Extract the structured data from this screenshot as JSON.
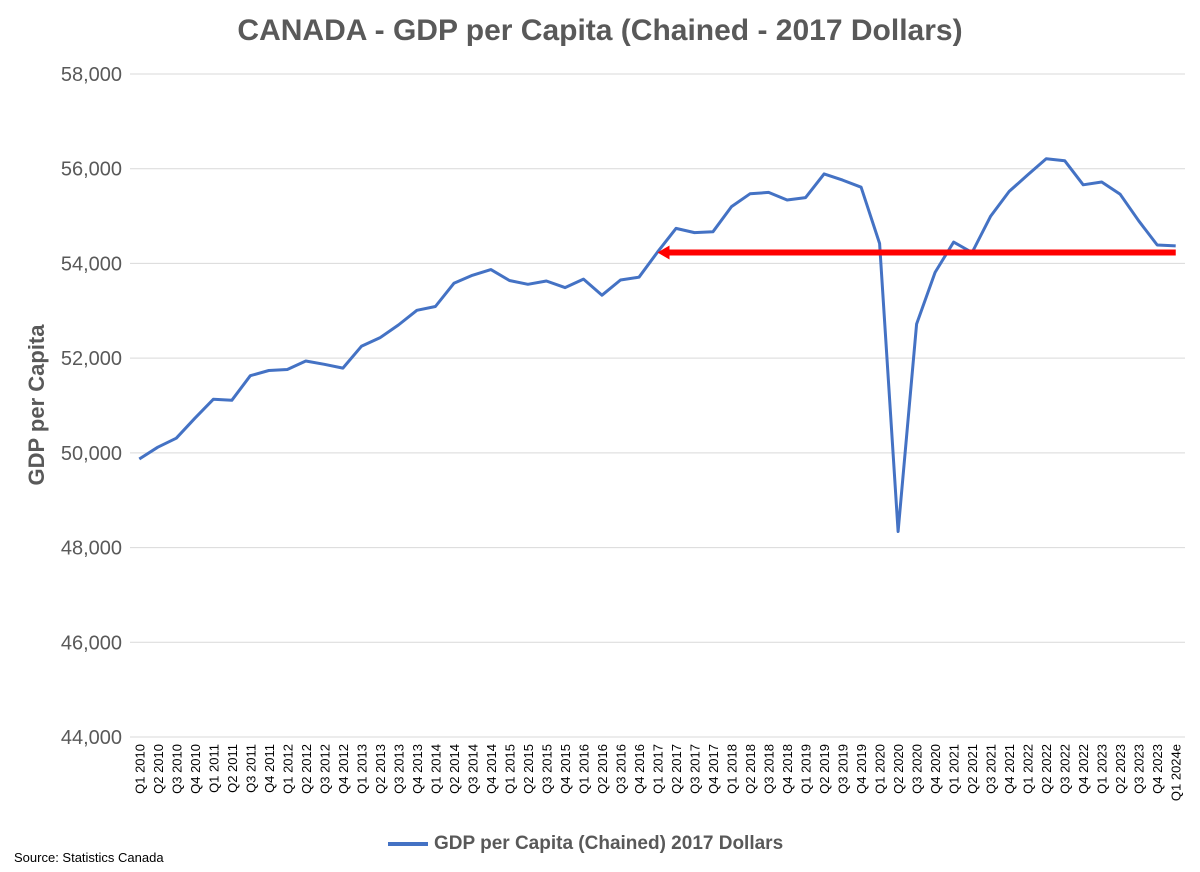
{
  "chart_data": {
    "type": "line",
    "title": "CANADA - GDP per Capita (Chained - 2017 Dollars)",
    "ylabel": "GDP per Capita",
    "xlabel": "",
    "ylim": [
      44000,
      58000
    ],
    "yticks": [
      44000,
      46000,
      48000,
      50000,
      52000,
      54000,
      56000,
      58000
    ],
    "ytick_labels": [
      "44,000",
      "46,000",
      "48,000",
      "50,000",
      "52,000",
      "54,000",
      "56,000",
      "58,000"
    ],
    "grid": "horizontal",
    "legend_position": "bottom",
    "categories": [
      "Q1 2010",
      "Q2 2010",
      "Q3 2010",
      "Q4 2010",
      "Q1 2011",
      "Q2 2011",
      "Q3 2011",
      "Q4 2011",
      "Q1 2012",
      "Q2 2012",
      "Q3 2012",
      "Q4 2012",
      "Q1 2013",
      "Q2 2013",
      "Q3 2013",
      "Q4 2013",
      "Q1 2014",
      "Q2 2014",
      "Q3 2014",
      "Q4 2014",
      "Q1 2015",
      "Q2 2015",
      "Q3 2015",
      "Q4 2015",
      "Q1 2016",
      "Q2 2016",
      "Q3 2016",
      "Q4 2016",
      "Q1 2017",
      "Q2 2017",
      "Q3 2017",
      "Q4 2017",
      "Q1 2018",
      "Q2 2018",
      "Q3 2018",
      "Q4 2018",
      "Q1 2019",
      "Q2 2019",
      "Q3 2019",
      "Q4 2019",
      "Q1 2020",
      "Q2 2020",
      "Q3 2020",
      "Q4 2020",
      "Q1 2021",
      "Q2 2021",
      "Q3 2021",
      "Q4 2021",
      "Q1 2022",
      "Q2 2022",
      "Q3 2022",
      "Q4 2022",
      "Q1 2023",
      "Q2 2023",
      "Q3 2023",
      "Q4 2023",
      "Q1 2024e"
    ],
    "series": [
      {
        "name": "GDP per Capita (Chained) 2017 Dollars",
        "color": "#4472c4",
        "values": [
          49870,
          50120,
          50310,
          50730,
          51130,
          51110,
          51630,
          51740,
          51760,
          51940,
          51870,
          51790,
          52250,
          52430,
          52700,
          53010,
          53090,
          53580,
          53750,
          53870,
          53640,
          53560,
          53630,
          53490,
          53670,
          53330,
          53650,
          53710,
          54240,
          54740,
          54650,
          54670,
          55200,
          55470,
          55500,
          55340,
          55390,
          55890,
          55760,
          55610,
          54420,
          48340,
          52720,
          53810,
          54450,
          54230,
          55000,
          55520,
          55870,
          56210,
          56170,
          55660,
          55720,
          55460,
          54900,
          54390,
          54370
        ]
      }
    ],
    "annotations": [
      {
        "type": "arrow",
        "color": "#ff0000",
        "y": 54230,
        "from_category": "Q1 2024e",
        "to_category": "Q1 2017"
      }
    ]
  },
  "source_text": "Source: Statistics Canada",
  "legend_swatch_color": "#4472c4"
}
